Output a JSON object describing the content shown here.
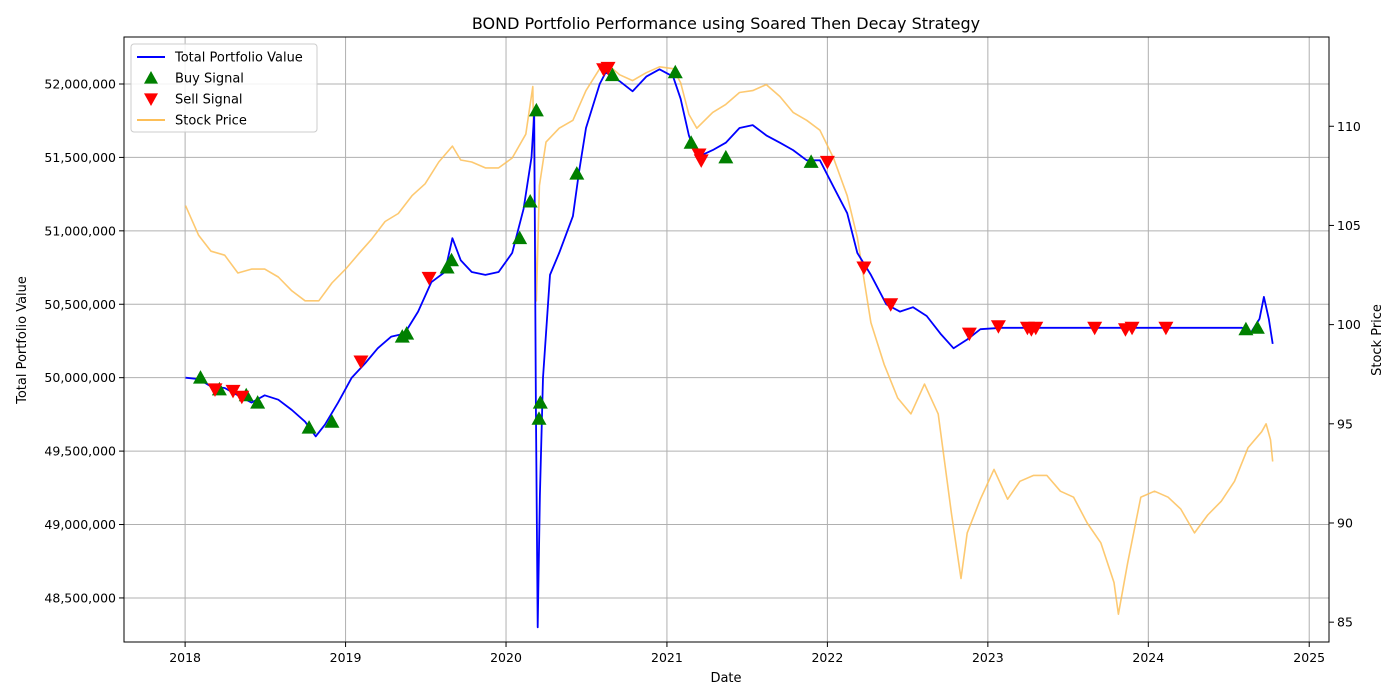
{
  "chart_data": {
    "type": "line",
    "title": "BOND Portfolio Performance using Soared Then Decay Strategy",
    "xlabel": "Date",
    "ylabel": "Total Portfolio Value",
    "ylabel_right": "Stock Price",
    "xlim": [
      "2017-08-15",
      "2025-02-15"
    ],
    "ylim": [
      48200000,
      52320000
    ],
    "ylim_right": [
      84,
      114.5
    ],
    "x_ticks": [
      "2018",
      "2019",
      "2020",
      "2021",
      "2022",
      "2023",
      "2024",
      "2025"
    ],
    "y_ticks": [
      48500000,
      49000000,
      49500000,
      50000000,
      50500000,
      51000000,
      51500000,
      52000000
    ],
    "y_tick_labels": [
      "48,500,000",
      "49,000,000",
      "49,500,000",
      "50,000,000",
      "50,500,000",
      "51,000,000",
      "51,500,000",
      "52,000,000"
    ],
    "y_right_ticks": [
      85,
      90,
      95,
      100,
      105,
      110
    ],
    "y_right_tick_labels": [
      "85",
      "90",
      "95",
      "100",
      "105",
      "110"
    ],
    "grid": true,
    "legend_position": "top-left",
    "series": [
      {
        "name": "Total Portfolio Value",
        "axis": "left",
        "color": "#0000ff",
        "points": [
          [
            "2018-01-02",
            50000000
          ],
          [
            "2018-02-01",
            49990000
          ],
          [
            "2018-03-01",
            49940000
          ],
          [
            "2018-04-01",
            49930000
          ],
          [
            "2018-05-01",
            49880000
          ],
          [
            "2018-06-01",
            49830000
          ],
          [
            "2018-07-01",
            49880000
          ],
          [
            "2018-08-01",
            49850000
          ],
          [
            "2018-09-01",
            49780000
          ],
          [
            "2018-10-01",
            49700000
          ],
          [
            "2018-10-25",
            49600000
          ],
          [
            "2018-11-15",
            49680000
          ],
          [
            "2018-12-15",
            49830000
          ],
          [
            "2019-01-15",
            50000000
          ],
          [
            "2019-02-15",
            50100000
          ],
          [
            "2019-03-15",
            50200000
          ],
          [
            "2019-04-15",
            50280000
          ],
          [
            "2019-05-15",
            50300000
          ],
          [
            "2019-06-15",
            50450000
          ],
          [
            "2019-07-15",
            50650000
          ],
          [
            "2019-08-15",
            50720000
          ],
          [
            "2019-09-01",
            50950000
          ],
          [
            "2019-09-20",
            50800000
          ],
          [
            "2019-10-15",
            50720000
          ],
          [
            "2019-11-15",
            50700000
          ],
          [
            "2019-12-15",
            50720000
          ],
          [
            "2020-01-15",
            50850000
          ],
          [
            "2020-02-10",
            51150000
          ],
          [
            "2020-02-28",
            51500000
          ],
          [
            "2020-03-05",
            51800000
          ],
          [
            "2020-03-09",
            49800000
          ],
          [
            "2020-03-13",
            48300000
          ],
          [
            "2020-03-18",
            49200000
          ],
          [
            "2020-03-25",
            50000000
          ],
          [
            "2020-04-10",
            50700000
          ],
          [
            "2020-05-01",
            50850000
          ],
          [
            "2020-06-01",
            51100000
          ],
          [
            "2020-06-15",
            51400000
          ],
          [
            "2020-07-01",
            51700000
          ],
          [
            "2020-08-01",
            52000000
          ],
          [
            "2020-08-15",
            52080000
          ],
          [
            "2020-09-15",
            52020000
          ],
          [
            "2020-10-15",
            51950000
          ],
          [
            "2020-11-15",
            52050000
          ],
          [
            "2020-12-15",
            52100000
          ],
          [
            "2021-01-15",
            52050000
          ],
          [
            "2021-02-01",
            51900000
          ],
          [
            "2021-02-20",
            51650000
          ],
          [
            "2021-03-10",
            51500000
          ],
          [
            "2021-04-15",
            51550000
          ],
          [
            "2021-05-15",
            51600000
          ],
          [
            "2021-06-15",
            51700000
          ],
          [
            "2021-07-15",
            51720000
          ],
          [
            "2021-08-15",
            51650000
          ],
          [
            "2021-09-15",
            51600000
          ],
          [
            "2021-10-15",
            51550000
          ],
          [
            "2021-11-15",
            51480000
          ],
          [
            "2021-12-15",
            51480000
          ],
          [
            "2022-01-15",
            51300000
          ],
          [
            "2022-02-15",
            51120000
          ],
          [
            "2022-03-10",
            50850000
          ],
          [
            "2022-04-10",
            50700000
          ],
          [
            "2022-05-15",
            50500000
          ],
          [
            "2022-06-15",
            50450000
          ],
          [
            "2022-07-15",
            50480000
          ],
          [
            "2022-08-15",
            50420000
          ],
          [
            "2022-09-15",
            50300000
          ],
          [
            "2022-10-15",
            50200000
          ],
          [
            "2022-11-15",
            50260000
          ],
          [
            "2022-12-15",
            50330000
          ],
          [
            "2023-02-01",
            50340000
          ],
          [
            "2024-08-01",
            50340000
          ],
          [
            "2024-08-20",
            50300000
          ],
          [
            "2024-09-10",
            50400000
          ],
          [
            "2024-09-20",
            50550000
          ],
          [
            "2024-10-01",
            50400000
          ],
          [
            "2024-10-10",
            50230000
          ]
        ]
      },
      {
        "name": "Stock Price",
        "axis": "right",
        "color": "#fdbf58",
        "points": [
          [
            "2018-01-02",
            106.0
          ],
          [
            "2018-02-01",
            104.5
          ],
          [
            "2018-03-01",
            103.7
          ],
          [
            "2018-04-01",
            103.5
          ],
          [
            "2018-05-01",
            102.6
          ],
          [
            "2018-06-01",
            102.8
          ],
          [
            "2018-07-01",
            102.8
          ],
          [
            "2018-08-01",
            102.4
          ],
          [
            "2018-09-01",
            101.7
          ],
          [
            "2018-10-01",
            101.2
          ],
          [
            "2018-11-01",
            101.2
          ],
          [
            "2018-12-01",
            102.1
          ],
          [
            "2019-01-01",
            102.8
          ],
          [
            "2019-02-01",
            103.6
          ],
          [
            "2019-03-01",
            104.3
          ],
          [
            "2019-04-01",
            105.2
          ],
          [
            "2019-05-01",
            105.6
          ],
          [
            "2019-06-01",
            106.5
          ],
          [
            "2019-07-01",
            107.1
          ],
          [
            "2019-08-01",
            108.2
          ],
          [
            "2019-09-01",
            109.0
          ],
          [
            "2019-09-20",
            108.3
          ],
          [
            "2019-10-15",
            108.2
          ],
          [
            "2019-11-15",
            107.9
          ],
          [
            "2019-12-15",
            107.9
          ],
          [
            "2020-01-15",
            108.4
          ],
          [
            "2020-02-15",
            109.6
          ],
          [
            "2020-03-02",
            112.0
          ],
          [
            "2020-03-10",
            101.2
          ],
          [
            "2020-03-17",
            107.0
          ],
          [
            "2020-04-01",
            109.2
          ],
          [
            "2020-05-01",
            109.9
          ],
          [
            "2020-06-01",
            110.3
          ],
          [
            "2020-07-01",
            111.8
          ],
          [
            "2020-08-01",
            112.9
          ],
          [
            "2020-08-15",
            113.2
          ],
          [
            "2020-09-15",
            112.6
          ],
          [
            "2020-10-15",
            112.3
          ],
          [
            "2020-11-15",
            112.7
          ],
          [
            "2020-12-15",
            113.0
          ],
          [
            "2021-01-15",
            112.9
          ],
          [
            "2021-02-01",
            112.2
          ],
          [
            "2021-02-20",
            110.6
          ],
          [
            "2021-03-10",
            109.9
          ],
          [
            "2021-04-15",
            110.7
          ],
          [
            "2021-05-15",
            111.1
          ],
          [
            "2021-06-15",
            111.7
          ],
          [
            "2021-07-15",
            111.8
          ],
          [
            "2021-08-15",
            112.1
          ],
          [
            "2021-09-15",
            111.5
          ],
          [
            "2021-10-15",
            110.7
          ],
          [
            "2021-11-15",
            110.3
          ],
          [
            "2021-12-15",
            109.8
          ],
          [
            "2022-01-15",
            108.4
          ],
          [
            "2022-02-15",
            106.5
          ],
          [
            "2022-03-10",
            104.4
          ],
          [
            "2022-04-10",
            100.1
          ],
          [
            "2022-05-10",
            98.0
          ],
          [
            "2022-06-10",
            96.3
          ],
          [
            "2022-07-10",
            95.5
          ],
          [
            "2022-08-10",
            97.0
          ],
          [
            "2022-09-10",
            95.5
          ],
          [
            "2022-10-10",
            90.5
          ],
          [
            "2022-11-01",
            87.2
          ],
          [
            "2022-11-15",
            89.5
          ],
          [
            "2022-12-15",
            91.2
          ],
          [
            "2023-01-15",
            92.7
          ],
          [
            "2023-02-15",
            91.2
          ],
          [
            "2023-03-15",
            92.1
          ],
          [
            "2023-04-15",
            92.4
          ],
          [
            "2023-05-15",
            92.4
          ],
          [
            "2023-06-15",
            91.6
          ],
          [
            "2023-07-15",
            91.3
          ],
          [
            "2023-08-15",
            90.0
          ],
          [
            "2023-09-15",
            89.0
          ],
          [
            "2023-10-15",
            87.0
          ],
          [
            "2023-10-25",
            85.4
          ],
          [
            "2023-11-15",
            88.0
          ],
          [
            "2023-12-15",
            91.3
          ],
          [
            "2024-01-15",
            91.6
          ],
          [
            "2024-02-15",
            91.3
          ],
          [
            "2024-03-15",
            90.7
          ],
          [
            "2024-04-15",
            89.5
          ],
          [
            "2024-05-15",
            90.4
          ],
          [
            "2024-06-15",
            91.1
          ],
          [
            "2024-07-15",
            92.1
          ],
          [
            "2024-08-15",
            93.8
          ],
          [
            "2024-09-15",
            94.6
          ],
          [
            "2024-09-25",
            95.0
          ],
          [
            "2024-10-05",
            94.2
          ],
          [
            "2024-10-10",
            93.1
          ]
        ]
      }
    ],
    "buy_signals": {
      "name": "Buy Signal",
      "color": "#008000",
      "marker": "triangle-up",
      "points": [
        [
          "2018-02-05",
          50000000
        ],
        [
          "2018-03-20",
          49920000
        ],
        [
          "2018-05-20",
          49880000
        ],
        [
          "2018-06-15",
          49830000
        ],
        [
          "2018-10-10",
          49660000
        ],
        [
          "2018-12-01",
          49700000
        ],
        [
          "2019-05-10",
          50280000
        ],
        [
          "2019-05-20",
          50300000
        ],
        [
          "2019-08-20",
          50750000
        ],
        [
          "2019-08-30",
          50800000
        ],
        [
          "2020-02-01",
          50950000
        ],
        [
          "2020-02-25",
          51200000
        ],
        [
          "2020-03-10",
          51820000
        ],
        [
          "2020-03-16",
          49720000
        ],
        [
          "2020-03-19",
          49830000
        ],
        [
          "2020-06-10",
          51390000
        ],
        [
          "2020-08-30",
          52060000
        ],
        [
          "2021-01-20",
          52080000
        ],
        [
          "2021-02-25",
          51600000
        ],
        [
          "2021-05-15",
          51500000
        ],
        [
          "2021-11-25",
          51470000
        ],
        [
          "2024-08-10",
          50330000
        ],
        [
          "2024-09-05",
          50340000
        ]
      ]
    },
    "sell_signals": {
      "name": "Sell Signal",
      "color": "#ff0000",
      "marker": "triangle-down",
      "points": [
        [
          "2018-03-10",
          49920000
        ],
        [
          "2018-04-20",
          49910000
        ],
        [
          "2018-05-10",
          49870000
        ],
        [
          "2019-02-05",
          50110000
        ],
        [
          "2019-07-10",
          50680000
        ],
        [
          "2020-08-10",
          52100000
        ],
        [
          "2020-08-20",
          52110000
        ],
        [
          "2021-03-15",
          51520000
        ],
        [
          "2021-03-20",
          51480000
        ],
        [
          "2022-01-01",
          51470000
        ],
        [
          "2022-03-25",
          50750000
        ],
        [
          "2022-05-25",
          50500000
        ],
        [
          "2022-11-20",
          50300000
        ],
        [
          "2023-01-25",
          50350000
        ],
        [
          "2023-04-01",
          50340000
        ],
        [
          "2023-04-10",
          50330000
        ],
        [
          "2023-04-20",
          50340000
        ],
        [
          "2023-09-01",
          50340000
        ],
        [
          "2023-11-10",
          50330000
        ],
        [
          "2023-11-25",
          50340000
        ],
        [
          "2024-02-10",
          50340000
        ]
      ]
    }
  }
}
